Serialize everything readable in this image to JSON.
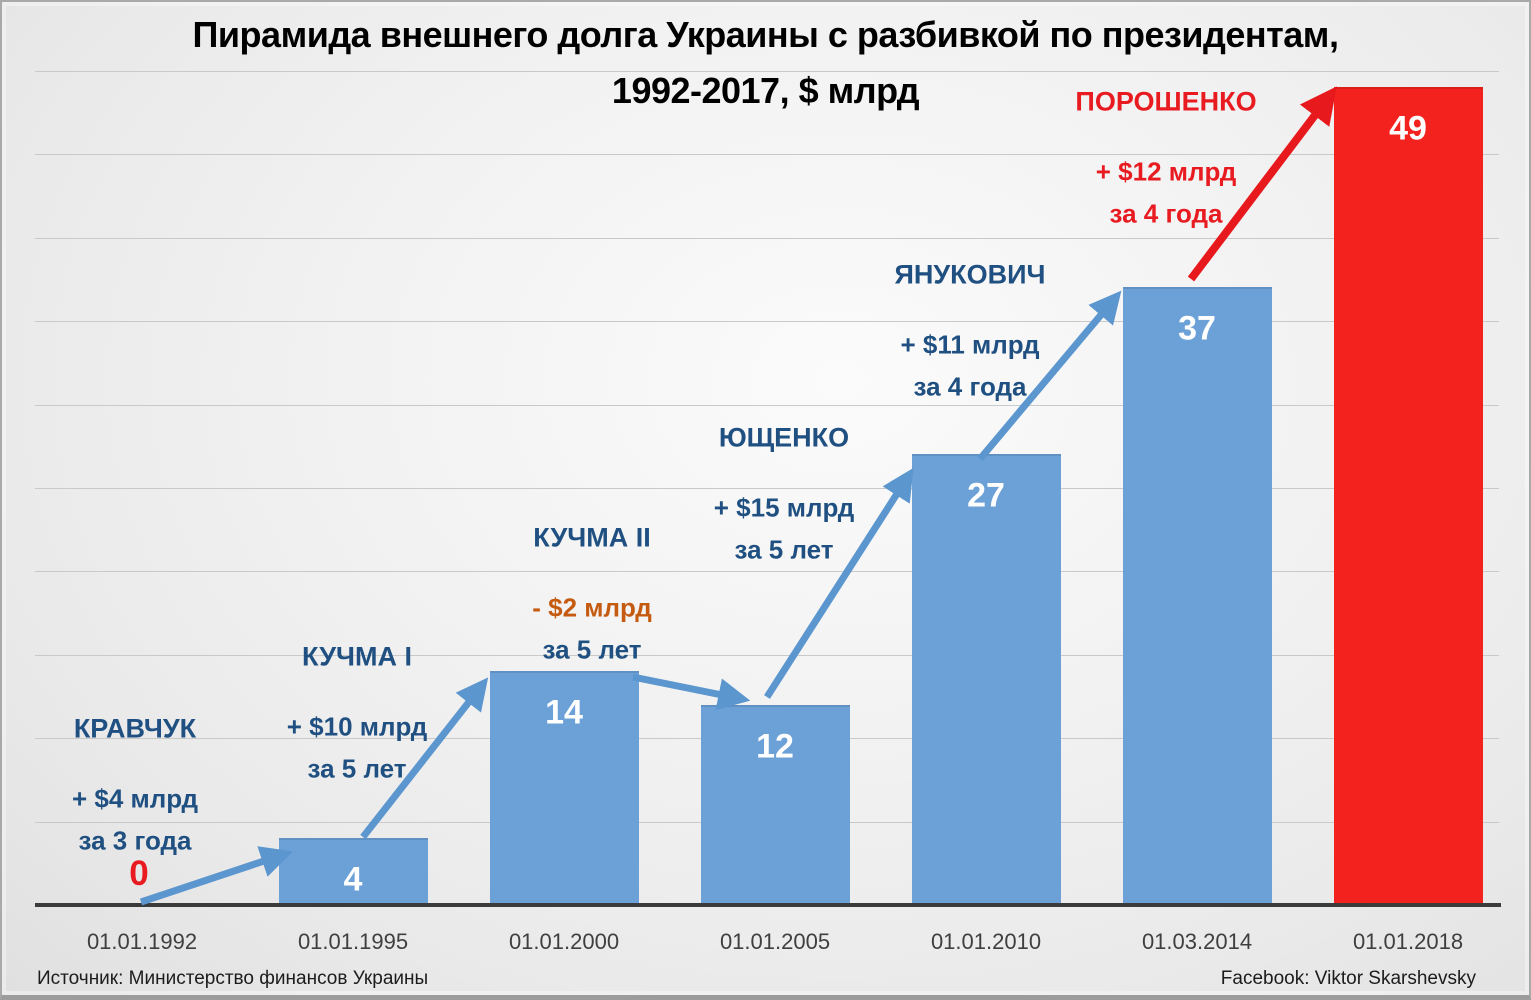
{
  "title": {
    "line1": "Пирамида внешнего долга Украины с разбивкой по президентам,",
    "line2": "1992-2017, $ млрд"
  },
  "footer": {
    "source": "Источник: Министерство финансов Украины",
    "credit": "Facebook: Viktor Skarshevsky"
  },
  "colors": {
    "bar_blue": "#6CA1D8",
    "bar_red": "#F4221E",
    "arrow_blue": "#5C96CF",
    "arrow_red": "#E8191D",
    "annotation_blue": "#1F5081",
    "annotation_orange": "#C55A11",
    "annotation_red": "#E81B21",
    "value_label_white": "#FFFFFF",
    "title_gray": "#3C3C3C",
    "axis_line_dark": "#3B3B3B",
    "gridline_gray": "#C9C9C9"
  },
  "chart_data": {
    "type": "bar",
    "title": "Пирамида внешнего долга Украины с разбивкой по президентам, 1992-2017, $ млрд",
    "xlabel": "",
    "ylabel": "",
    "ylim": [
      0,
      50
    ],
    "grid": true,
    "gridline_step": 5,
    "legend": "none",
    "categories": [
      "01.01.1992",
      "01.01.1995",
      "01.01.2000",
      "01.01.2005",
      "01.01.2010",
      "01.03.2014",
      "01.01.2018"
    ],
    "values": [
      0,
      4,
      14,
      12,
      27,
      37,
      49
    ],
    "bar_colors": [
      "none",
      "blue",
      "blue",
      "blue",
      "blue",
      "blue",
      "red"
    ],
    "annotations": [
      {
        "president": "КРАВЧУК",
        "delta": "+ $4 млрд",
        "period": "за 3 года",
        "name_color": "blue",
        "delta_color": "blue",
        "period_color": "blue"
      },
      {
        "president": "КУЧМА I",
        "delta": "+ $10 млрд",
        "period": "за 5 лет",
        "name_color": "blue",
        "delta_color": "blue",
        "period_color": "blue"
      },
      {
        "president": "КУЧМА II",
        "delta": "- $2 млрд",
        "period": "за 5 лет",
        "name_color": "blue",
        "delta_color": "orange",
        "period_color": "blue"
      },
      {
        "president": "ЮЩЕНКО",
        "delta": "+ $15 млрд",
        "period": "за 5 лет",
        "name_color": "blue",
        "delta_color": "blue",
        "period_color": "blue"
      },
      {
        "president": "ЯНУКОВИЧ",
        "delta": "+ $11 млрд",
        "period": "за 4 года",
        "name_color": "blue",
        "delta_color": "blue",
        "period_color": "blue"
      },
      {
        "president": "ПОРОШЕНКО",
        "delta": "+ $12 млрд",
        "period": "за 4 года",
        "name_color": "red",
        "delta_color": "red",
        "period_color": "red"
      }
    ]
  }
}
